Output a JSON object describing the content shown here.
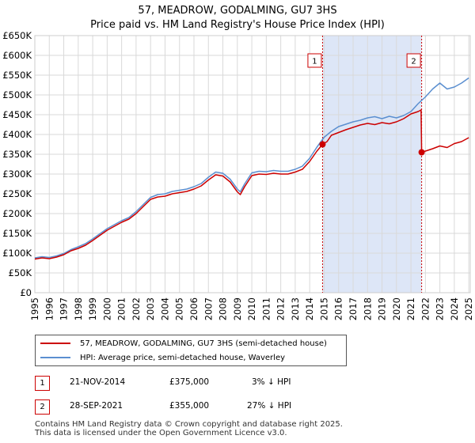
{
  "title": "57, MEADROW, GODALMING, GU7 3HS",
  "subtitle": "Price paid vs. HM Land Registry's House Price Index (HPI)",
  "colors": {
    "property": "#cc0000",
    "hpi": "#5b8fd0",
    "shade": "#dde6f7",
    "grid": "#d9d9d9",
    "vline": "#cc0000"
  },
  "legend": {
    "property_label": "57, MEADROW, GODALMING, GU7 3HS (semi-detached house)",
    "hpi_label": "HPI: Average price, semi-detached house, Waverley"
  },
  "transactions": [
    {
      "id": "1",
      "date": "21-NOV-2014",
      "price": "£375,000",
      "hpi_diff": "3% ↓ HPI"
    },
    {
      "id": "2",
      "date": "28-SEP-2021",
      "price": "£355,000",
      "hpi_diff": "27% ↓ HPI"
    }
  ],
  "footer": {
    "line1": "Contains HM Land Registry data © Crown copyright and database right 2025.",
    "line2": "This data is licensed under the Open Government Licence v3.0."
  },
  "chart_data": {
    "type": "line",
    "title": "57, MEADROW, GODALMING, GU7 3HS",
    "subtitle": "Price paid vs. HM Land Registry's House Price Index (HPI)",
    "xlabel": "",
    "ylabel": "",
    "xlim": [
      1995,
      2025.1
    ],
    "ylim": [
      0,
      650000
    ],
    "y_ticks": [
      0,
      50000,
      100000,
      150000,
      200000,
      250000,
      300000,
      350000,
      400000,
      450000,
      500000,
      550000,
      600000,
      650000
    ],
    "y_tick_labels": [
      "£0",
      "£50K",
      "£100K",
      "£150K",
      "£200K",
      "£250K",
      "£300K",
      "£350K",
      "£400K",
      "£450K",
      "£500K",
      "£550K",
      "£600K",
      "£650K"
    ],
    "x_ticks": [
      1995,
      1996,
      1997,
      1998,
      1999,
      2000,
      2001,
      2002,
      2003,
      2004,
      2005,
      2006,
      2007,
      2008,
      2009,
      2010,
      2011,
      2012,
      2013,
      2014,
      2015,
      2016,
      2017,
      2018,
      2019,
      2020,
      2021,
      2022,
      2023,
      2024,
      2025
    ],
    "x_tick_labels": [
      "1995",
      "1996",
      "1997",
      "1998",
      "1999",
      "2000",
      "2001",
      "2002",
      "2003",
      "2004",
      "2005",
      "2006",
      "2007",
      "2008",
      "2009",
      "2010",
      "2011",
      "2012",
      "2013",
      "2014",
      "2015",
      "2016",
      "2017",
      "2018",
      "2019",
      "2020",
      "2021",
      "2022",
      "2023",
      "2024",
      "2025"
    ],
    "grid": true,
    "shaded_region": [
      2014.89,
      2021.74
    ],
    "markers": [
      {
        "label": "1",
        "x": 2014.89,
        "y": 375000
      },
      {
        "label": "2",
        "x": 2021.74,
        "y": 355000
      }
    ],
    "series": [
      {
        "name": "57, MEADROW, GODALMING, GU7 3HS (semi-detached house)",
        "color": "#cc0000",
        "x": [
          1995.0,
          1995.5,
          1996.0,
          1996.5,
          1997.0,
          1997.5,
          1998.0,
          1998.5,
          1999.0,
          1999.5,
          2000.0,
          2000.5,
          2001.0,
          2001.5,
          2002.0,
          2002.5,
          2003.0,
          2003.5,
          2004.0,
          2004.5,
          2005.0,
          2005.5,
          2006.0,
          2006.5,
          2007.0,
          2007.5,
          2008.0,
          2008.5,
          2009.0,
          2009.2,
          2009.5,
          2010.0,
          2010.5,
          2011.0,
          2011.5,
          2012.0,
          2012.5,
          2013.0,
          2013.5,
          2014.0,
          2014.5,
          2014.89,
          2015.2,
          2015.5,
          2016.0,
          2016.5,
          2017.0,
          2017.5,
          2018.0,
          2018.5,
          2019.0,
          2019.5,
          2020.0,
          2020.5,
          2021.0,
          2021.5,
          2021.7,
          2021.74,
          2022.0,
          2022.5,
          2023.0,
          2023.5,
          2024.0,
          2024.5,
          2025.0
        ],
        "y": [
          85000,
          88000,
          86000,
          90000,
          96000,
          106000,
          112000,
          120000,
          132000,
          145000,
          158000,
          168000,
          178000,
          186000,
          200000,
          218000,
          236000,
          242000,
          244000,
          250000,
          253000,
          256000,
          262000,
          270000,
          285000,
          298000,
          295000,
          280000,
          255000,
          248000,
          268000,
          296000,
          300000,
          299000,
          302000,
          300000,
          300000,
          305000,
          312000,
          332000,
          358000,
          375000,
          382000,
          398000,
          405000,
          412000,
          418000,
          424000,
          428000,
          425000,
          430000,
          427000,
          432000,
          440000,
          452000,
          458000,
          462000,
          355000,
          358000,
          364000,
          371000,
          367000,
          377000,
          382000,
          392000
        ]
      },
      {
        "name": "HPI: Average price, semi-detached house, Waverley",
        "color": "#5b8fd0",
        "x": [
          1995.0,
          1995.5,
          1996.0,
          1996.5,
          1997.0,
          1997.5,
          1998.0,
          1998.5,
          1999.0,
          1999.5,
          2000.0,
          2000.5,
          2001.0,
          2001.5,
          2002.0,
          2002.5,
          2003.0,
          2003.5,
          2004.0,
          2004.5,
          2005.0,
          2005.5,
          2006.0,
          2006.5,
          2007.0,
          2007.5,
          2008.0,
          2008.5,
          2009.0,
          2009.2,
          2009.5,
          2010.0,
          2010.5,
          2011.0,
          2011.5,
          2012.0,
          2012.5,
          2013.0,
          2013.5,
          2014.0,
          2014.5,
          2015.0,
          2015.5,
          2016.0,
          2016.5,
          2017.0,
          2017.5,
          2018.0,
          2018.5,
          2019.0,
          2019.5,
          2020.0,
          2020.5,
          2021.0,
          2021.5,
          2022.0,
          2022.5,
          2023.0,
          2023.5,
          2024.0,
          2024.5,
          2025.0
        ],
        "y": [
          88000,
          91000,
          89000,
          93000,
          99000,
          109000,
          116000,
          124000,
          136000,
          149000,
          162000,
          172000,
          182000,
          190000,
          205000,
          223000,
          241000,
          248000,
          250000,
          256000,
          259000,
          262000,
          268000,
          276000,
          292000,
          305000,
          302000,
          287000,
          262000,
          255000,
          275000,
          303000,
          307000,
          306000,
          309000,
          307000,
          307000,
          312000,
          320000,
          340000,
          368000,
          393000,
          408000,
          420000,
          426000,
          432000,
          436000,
          442000,
          445000,
          440000,
          446000,
          442000,
          448000,
          458000,
          478000,
          495000,
          515000,
          530000,
          515000,
          520000,
          530000,
          543000
        ]
      }
    ]
  }
}
